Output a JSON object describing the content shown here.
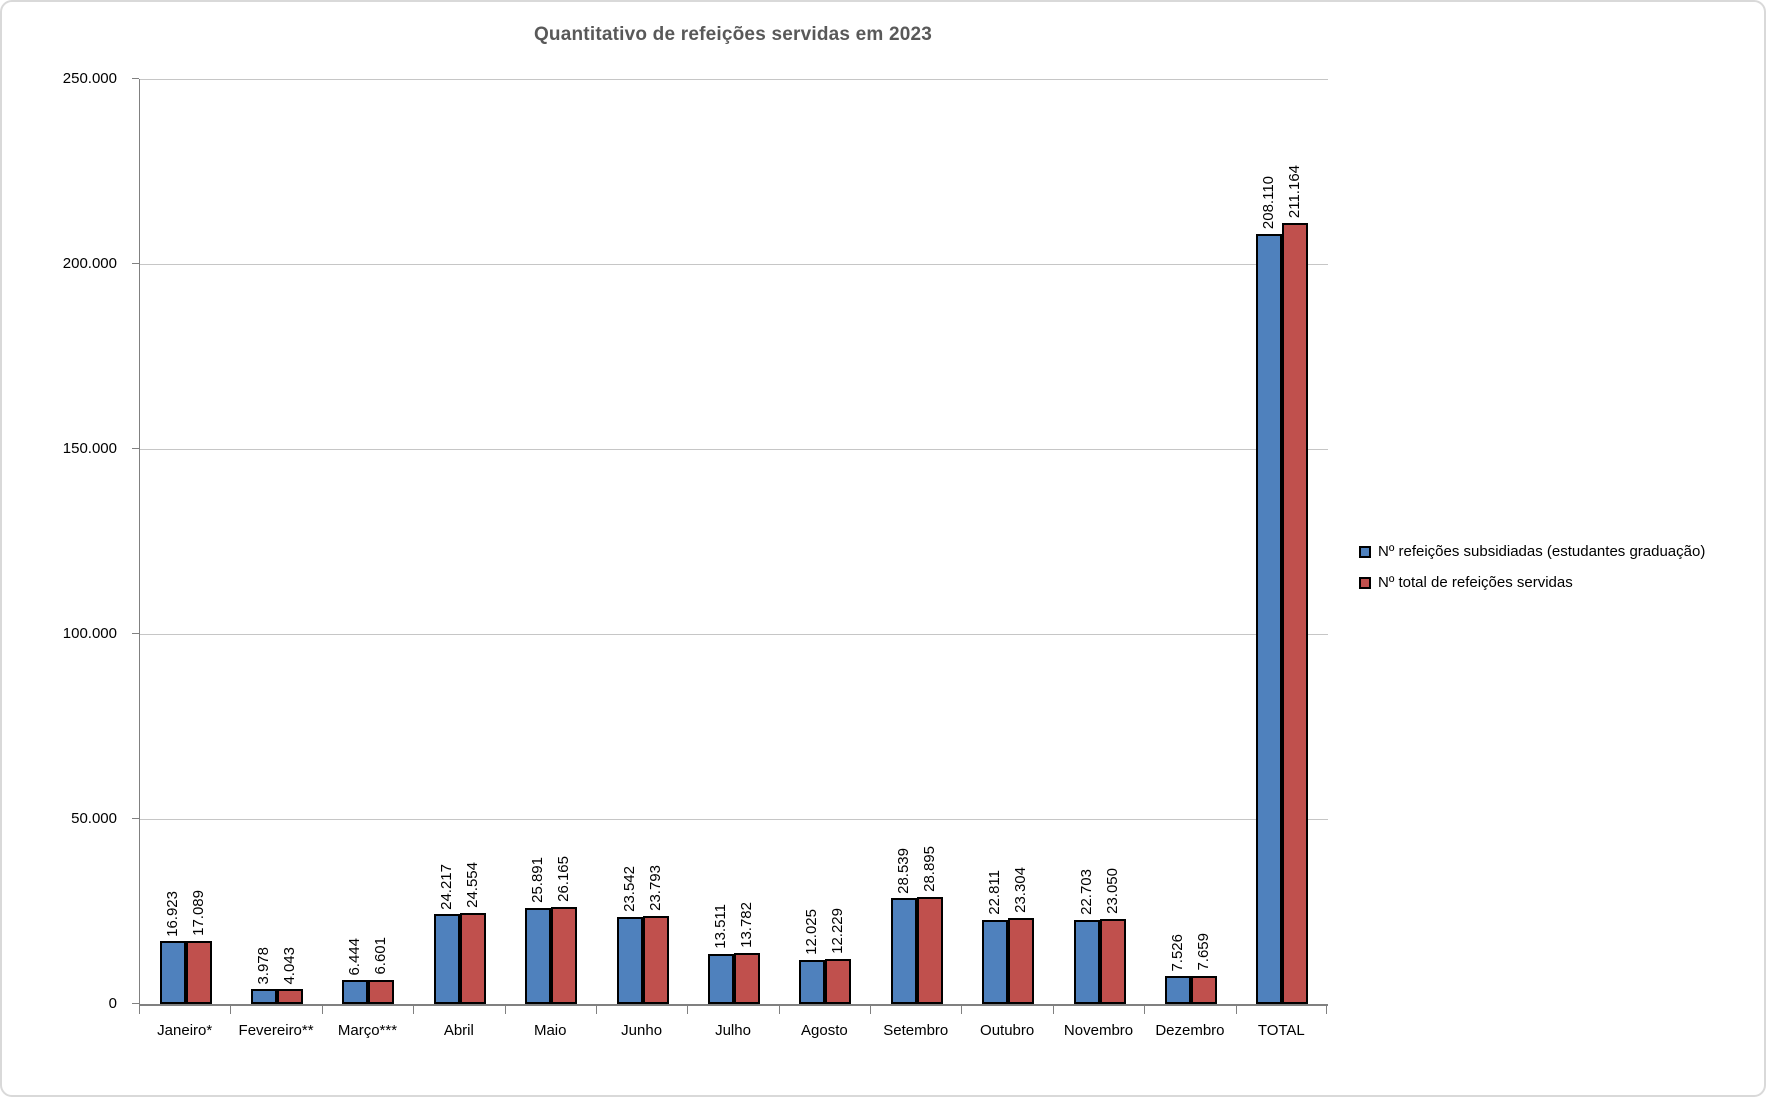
{
  "chart": {
    "title": "Quantitativo de refeições servidas em 2023"
  },
  "chart_data": {
    "type": "bar",
    "title": "Quantitativo de refeições servidas em 2023",
    "categories": [
      "Janeiro*",
      "Fevereiro**",
      "Março***",
      "Abril",
      "Maio",
      "Junho",
      "Julho",
      "Agosto",
      "Setembro",
      "Outubro",
      "Novembro",
      "Dezembro",
      "TOTAL"
    ],
    "series": [
      {
        "name": "Nº refeições subsidiadas (estudantes graduação)",
        "color": "#4F81BD",
        "values": [
          16923,
          3978,
          6444,
          24217,
          25891,
          23542,
          13511,
          12025,
          28539,
          22811,
          22703,
          7526,
          208110
        ],
        "labels": [
          "16.923",
          "3.978",
          "6.444",
          "24.217",
          "25.891",
          "23.542",
          "13.511",
          "12.025",
          "28.539",
          "22.811",
          "22.703",
          "7.526",
          "208.110"
        ]
      },
      {
        "name": "Nº total de refeições servidas",
        "color": "#C0504D",
        "values": [
          17089,
          4043,
          6601,
          24554,
          26165,
          23793,
          13782,
          12229,
          28895,
          23304,
          23050,
          7659,
          211164
        ],
        "labels": [
          "17.089",
          "4.043",
          "6.601",
          "24.554",
          "26.165",
          "23.793",
          "13.782",
          "12.229",
          "28.895",
          "23.304",
          "23.050",
          "7.659",
          "211.164"
        ]
      }
    ],
    "ylim": [
      0,
      250000
    ],
    "yticks": [
      {
        "value": 0,
        "label": "0"
      },
      {
        "value": 50000,
        "label": "50.000"
      },
      {
        "value": 100000,
        "label": "100.000"
      },
      {
        "value": 150000,
        "label": "150.000"
      },
      {
        "value": 200000,
        "label": "200.000"
      },
      {
        "value": 250000,
        "label": "250.000"
      }
    ],
    "grid": true,
    "legend_position": "right",
    "data_labels": "rotated-vertical",
    "bar_border_color": "#000000",
    "gridline_color": "#C6C6C6",
    "axis_line_color": "#808080",
    "title_color": "#595959"
  }
}
